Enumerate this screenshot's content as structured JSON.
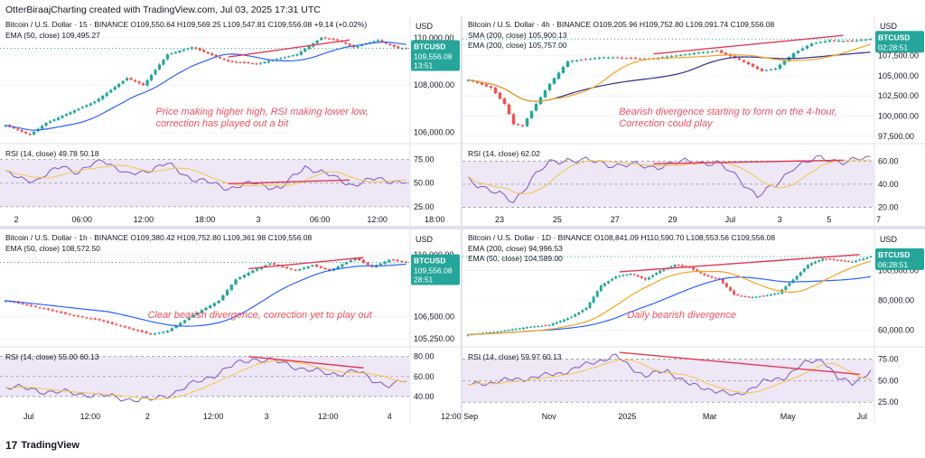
{
  "header": "OtterBiraajCharting created with TradingView.com, Jul 03, 2025 17:31 UTC",
  "footer": {
    "logo": "17",
    "brand": "TradingView"
  },
  "colors": {
    "up": "#26a69a",
    "down": "#ef5350",
    "ema50": "#2962ff",
    "ema200": "#f7a21b",
    "sma200": "#2a2e8f",
    "rsi": "#7e57c2",
    "rsi_ma": "#f7c54a",
    "annotation": "#ef4f5f",
    "divergence": "#e53950",
    "badge": "#26a69a",
    "rsi_band": "#ede7f6"
  },
  "chart_data": [
    {
      "id": "p1",
      "type": "candlestick",
      "legend_title": "Bitcoin / U.S. Dollar · 15 · BINANCE",
      "ohlc_text": "O109,550.64  H109,569.25  L109,547.81  C109,556.08  +9.14 (+0.02%)",
      "ma_label": "EMA (50, close)",
      "ma_value": "109,495.27",
      "currency": "USD",
      "y_ticks": [
        "110,000.00",
        "108,000.00",
        "106,000.00"
      ],
      "y_tick_values": [
        110000,
        108000,
        106000
      ],
      "price_range": [
        105600,
        110300
      ],
      "badge": {
        "symbol": "BTCUSD",
        "price": "109,556.08",
        "time": "13:51",
        "value": 109556
      },
      "annotation": [
        "Price making higher high, RSI making lower low,",
        "correction has played out a bit"
      ],
      "rsi_label": "RSI (14, close)",
      "rsi_value": "49.78",
      "rsi_ma_value": "50.18",
      "rsi_ticks": [
        "75.00",
        "50.00",
        "25.00"
      ],
      "rsi_tick_values": [
        75,
        50,
        25
      ],
      "rsi_range": [
        22,
        88
      ],
      "x_ticks": [
        "2",
        "06:00",
        "12:00",
        "18:00",
        "3",
        "06:00",
        "12:00",
        "18:00"
      ],
      "x_tick_pos": [
        0.04,
        0.2,
        0.35,
        0.5,
        0.63,
        0.78,
        0.92,
        1.06
      ],
      "n": 100,
      "anchors": [
        [
          0,
          106300
        ],
        [
          6,
          105900
        ],
        [
          10,
          106400
        ],
        [
          22,
          107300
        ],
        [
          30,
          108300
        ],
        [
          34,
          108000
        ],
        [
          40,
          109300
        ],
        [
          46,
          109600
        ],
        [
          55,
          109000
        ],
        [
          62,
          108900
        ],
        [
          72,
          109300
        ],
        [
          78,
          110000
        ],
        [
          82,
          109900
        ],
        [
          86,
          109600
        ],
        [
          92,
          109900
        ],
        [
          97,
          109550
        ],
        [
          99,
          109556
        ]
      ],
      "rsi_anchors": [
        [
          0,
          60
        ],
        [
          8,
          52
        ],
        [
          14,
          70
        ],
        [
          18,
          60
        ],
        [
          24,
          76
        ],
        [
          30,
          58
        ],
        [
          40,
          70
        ],
        [
          46,
          55
        ],
        [
          55,
          45
        ],
        [
          62,
          50
        ],
        [
          68,
          44
        ],
        [
          74,
          68
        ],
        [
          80,
          58
        ],
        [
          86,
          48
        ],
        [
          92,
          55
        ],
        [
          99,
          50
        ]
      ],
      "ma_period": 18,
      "overlay": true
    },
    {
      "id": "p2",
      "type": "candlestick",
      "legend_title": "Bitcoin / U.S. Dollar · 4h · BINANCE",
      "ohlc_text": "O109,205.96  H109,752.80  L109,091.74  C109,556.08",
      "ma_label": "SMA (200, close)",
      "ma_value": "105,900.13",
      "ma2_label": "EMA (200, close)",
      "ma2_value": "105,757.00",
      "currency": "USD",
      "y_ticks": [
        "107,500.00",
        "105,000.00",
        "102,500.00",
        "100,000.00",
        "97,500.00"
      ],
      "y_tick_values": [
        107500,
        105000,
        102500,
        100000,
        97500
      ],
      "price_range": [
        96800,
        110600
      ],
      "badge": {
        "symbol": "BTCUSD",
        "price": "",
        "time": "02:28:51",
        "value": 109556
      },
      "annotation": [
        "Bearish divergence starting to form on the 4-hour,",
        "Correction could play"
      ],
      "rsi_label": "RSI (14, close)",
      "rsi_value": "62.02",
      "rsi_ma_value": "",
      "rsi_ticks": [
        "60.00",
        "40.00",
        "20.00"
      ],
      "rsi_tick_values": [
        60,
        40,
        20
      ],
      "rsi_range": [
        18,
        72
      ],
      "x_ticks": [
        "23",
        "25",
        "27",
        "29",
        "Jul",
        "3",
        "5",
        "7"
      ],
      "x_tick_pos": [
        0.09,
        0.23,
        0.37,
        0.51,
        0.65,
        0.77,
        0.89,
        1.01
      ],
      "n": 90,
      "anchors": [
        [
          0,
          104500
        ],
        [
          5,
          103500
        ],
        [
          8,
          101500
        ],
        [
          10,
          99000
        ],
        [
          12,
          98800
        ],
        [
          15,
          101500
        ],
        [
          18,
          104000
        ],
        [
          22,
          106800
        ],
        [
          30,
          107300
        ],
        [
          40,
          107100
        ],
        [
          50,
          107800
        ],
        [
          55,
          108100
        ],
        [
          60,
          107000
        ],
        [
          65,
          105600
        ],
        [
          68,
          105900
        ],
        [
          72,
          107800
        ],
        [
          76,
          109000
        ],
        [
          80,
          109400
        ],
        [
          84,
          109300
        ],
        [
          89,
          109556
        ]
      ],
      "rsi_anchors": [
        [
          0,
          45
        ],
        [
          6,
          32
        ],
        [
          10,
          25
        ],
        [
          14,
          45
        ],
        [
          18,
          58
        ],
        [
          22,
          62
        ],
        [
          30,
          58
        ],
        [
          40,
          55
        ],
        [
          50,
          60
        ],
        [
          55,
          58
        ],
        [
          60,
          45
        ],
        [
          64,
          30
        ],
        [
          68,
          38
        ],
        [
          72,
          56
        ],
        [
          78,
          62
        ],
        [
          84,
          60
        ],
        [
          89,
          62
        ]
      ],
      "ma_period": 40,
      "overlay": true
    },
    {
      "id": "p3",
      "type": "candlestick",
      "legend_title": "Bitcoin / U.S. Dollar · 1h · BINANCE",
      "ohlc_text": "O109,380.42  H109,752.80  L109,361.98  C109,556.08",
      "ma_label": "EMA (50, close)",
      "ma_value": "108,572.50",
      "currency": "USD",
      "y_ticks": [
        "110,000.00",
        "106,500.00",
        "105,250.00"
      ],
      "y_tick_values": [
        110000,
        106500,
        105250
      ],
      "price_range": [
        104900,
        110600
      ],
      "badge": {
        "symbol": "BTCUSD",
        "price": "109,556.08",
        "time": "28:51",
        "value": 109556
      },
      "annotation": [
        "Clear bearish divergence, correction yet to play out"
      ],
      "rsi_label": "RSI (14, close)",
      "rsi_value": "55.00",
      "rsi_ma_value": "60.13",
      "rsi_ticks": [
        "80.00",
        "60.00",
        "40.00"
      ],
      "rsi_tick_values": [
        80,
        60,
        40
      ],
      "rsi_range": [
        30,
        86
      ],
      "x_ticks": [
        "Jul",
        "12:00",
        "2",
        "12:00",
        "3",
        "12:00",
        "4",
        "12:00"
      ],
      "x_tick_pos": [
        0.07,
        0.22,
        0.36,
        0.52,
        0.65,
        0.8,
        0.95,
        1.1
      ],
      "n": 95,
      "anchors": [
        [
          0,
          107400
        ],
        [
          8,
          107000
        ],
        [
          15,
          106600
        ],
        [
          22,
          106300
        ],
        [
          28,
          105900
        ],
        [
          34,
          105500
        ],
        [
          38,
          105700
        ],
        [
          44,
          106600
        ],
        [
          50,
          107400
        ],
        [
          54,
          108600
        ],
        [
          58,
          109100
        ],
        [
          62,
          109500
        ],
        [
          68,
          109100
        ],
        [
          72,
          109400
        ],
        [
          76,
          109100
        ],
        [
          82,
          109800
        ],
        [
          86,
          109300
        ],
        [
          90,
          109700
        ],
        [
          94,
          109556
        ]
      ],
      "rsi_anchors": [
        [
          0,
          50
        ],
        [
          10,
          45
        ],
        [
          20,
          42
        ],
        [
          28,
          38
        ],
        [
          34,
          36
        ],
        [
          40,
          45
        ],
        [
          48,
          60
        ],
        [
          54,
          72
        ],
        [
          58,
          78
        ],
        [
          62,
          76
        ],
        [
          70,
          68
        ],
        [
          76,
          62
        ],
        [
          82,
          66
        ],
        [
          86,
          56
        ],
        [
          90,
          52
        ],
        [
          94,
          55
        ]
      ],
      "ma_period": 25,
      "overlay": true
    },
    {
      "id": "p4",
      "type": "candlestick",
      "legend_title": "Bitcoin / U.S. Dollar · 1D · BINANCE",
      "ohlc_text": "O108,841.09  H110,590.70  L108,553.56  C109,556.08",
      "ma_label": "EMA (200, close)",
      "ma_value": "94,996.53",
      "ma2_label": "EMA (50, close)",
      "ma2_value": "104,589.00",
      "currency": "USD",
      "y_ticks": [
        "100,000.00",
        "80,000.00",
        "60,000.00"
      ],
      "y_tick_values": [
        100000,
        80000,
        60000
      ],
      "price_range": [
        50000,
        118000
      ],
      "badge": {
        "symbol": "BTCUSD",
        "price": "",
        "time": "06:28:51",
        "value": 109556
      },
      "annotation": [
        "Daily bearish divergence"
      ],
      "rsi_label": "RSI (14, close)",
      "rsi_value": "59.97",
      "rsi_ma_value": "60.13",
      "rsi_ticks": [
        "75.00",
        "50.00",
        "25.00"
      ],
      "rsi_tick_values": [
        75,
        50,
        25
      ],
      "rsi_range": [
        20,
        85
      ],
      "x_ticks": [
        "Sep",
        "Nov",
        "2025",
        "Mar",
        "May",
        "Jul"
      ],
      "x_tick_pos": [
        0.02,
        0.21,
        0.4,
        0.6,
        0.79,
        0.97
      ],
      "n": 110,
      "anchors": [
        [
          0,
          57000
        ],
        [
          8,
          59000
        ],
        [
          16,
          62000
        ],
        [
          22,
          63500
        ],
        [
          28,
          69000
        ],
        [
          32,
          75000
        ],
        [
          36,
          90000
        ],
        [
          40,
          96000
        ],
        [
          44,
          98000
        ],
        [
          48,
          94000
        ],
        [
          52,
          100000
        ],
        [
          56,
          104000
        ],
        [
          60,
          102000
        ],
        [
          64,
          97000
        ],
        [
          68,
          94000
        ],
        [
          72,
          84000
        ],
        [
          76,
          82000
        ],
        [
          80,
          83000
        ],
        [
          84,
          85000
        ],
        [
          88,
          94000
        ],
        [
          92,
          104000
        ],
        [
          96,
          108000
        ],
        [
          100,
          107000
        ],
        [
          104,
          106000
        ],
        [
          109,
          109556
        ]
      ],
      "rsi_anchors": [
        [
          0,
          45
        ],
        [
          10,
          50
        ],
        [
          20,
          55
        ],
        [
          28,
          62
        ],
        [
          34,
          72
        ],
        [
          40,
          78
        ],
        [
          48,
          55
        ],
        [
          54,
          62
        ],
        [
          60,
          45
        ],
        [
          66,
          40
        ],
        [
          72,
          32
        ],
        [
          76,
          40
        ],
        [
          80,
          48
        ],
        [
          86,
          55
        ],
        [
          92,
          72
        ],
        [
          96,
          75
        ],
        [
          100,
          52
        ],
        [
          104,
          48
        ],
        [
          109,
          60
        ]
      ],
      "ma_period": 40,
      "overlay": true
    }
  ]
}
